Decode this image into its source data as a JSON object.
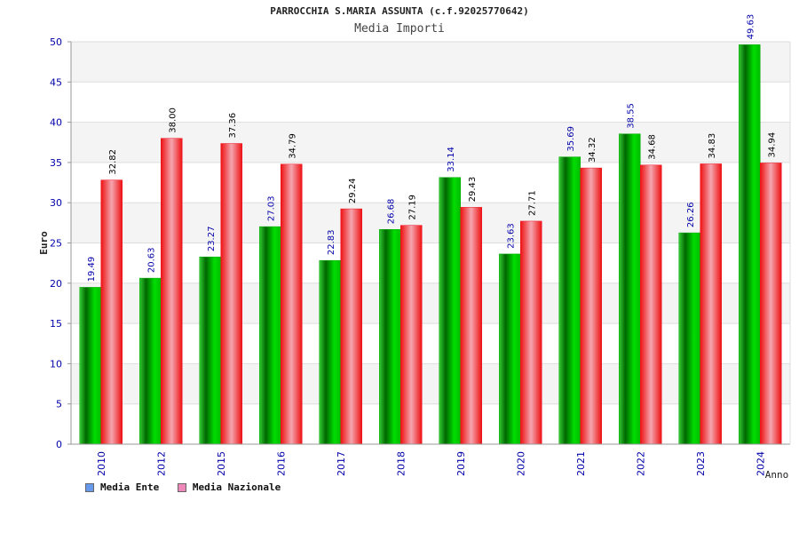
{
  "chart_data": {
    "type": "bar",
    "title": "PARROCCHIA S.MARIA ASSUNTA (c.f.92025770642)",
    "subtitle": "Media Importi",
    "ylabel": "Euro",
    "xlabel": "Anno",
    "ylim": [
      0,
      50
    ],
    "yticks": [
      0,
      5,
      10,
      15,
      20,
      25,
      30,
      35,
      40,
      45,
      50
    ],
    "categories": [
      "2010",
      "2012",
      "2015",
      "2016",
      "2017",
      "2018",
      "2019",
      "2020",
      "2021",
      "2022",
      "2023",
      "2024"
    ],
    "series": [
      {
        "name": "Media Ente",
        "legend_color": "#6699ee",
        "bar_color": "#00aa00",
        "values": [
          19.49,
          20.63,
          23.27,
          27.03,
          22.83,
          26.68,
          33.14,
          23.63,
          35.69,
          38.55,
          26.26,
          49.63
        ],
        "labels": [
          "19.49",
          "20.63",
          "23.27",
          "27.03",
          "22.83",
          "26.68",
          "33.14",
          "23.63",
          "35.69",
          "38.55",
          "26.26",
          "49.63"
        ]
      },
      {
        "name": "Media Nazionale",
        "legend_color": "#ee88bb",
        "bar_color": "#ee1122",
        "values": [
          32.82,
          38.0,
          37.36,
          34.79,
          29.24,
          27.19,
          29.43,
          27.71,
          34.32,
          34.68,
          34.83,
          34.94
        ],
        "labels": [
          "32.82",
          "38.00",
          "37.36",
          "34.79",
          "29.24",
          "27.19",
          "29.43",
          "27.71",
          "34.32",
          "34.68",
          "34.83",
          "34.94"
        ]
      }
    ],
    "grid": true,
    "legend_position": "bottom-left"
  }
}
